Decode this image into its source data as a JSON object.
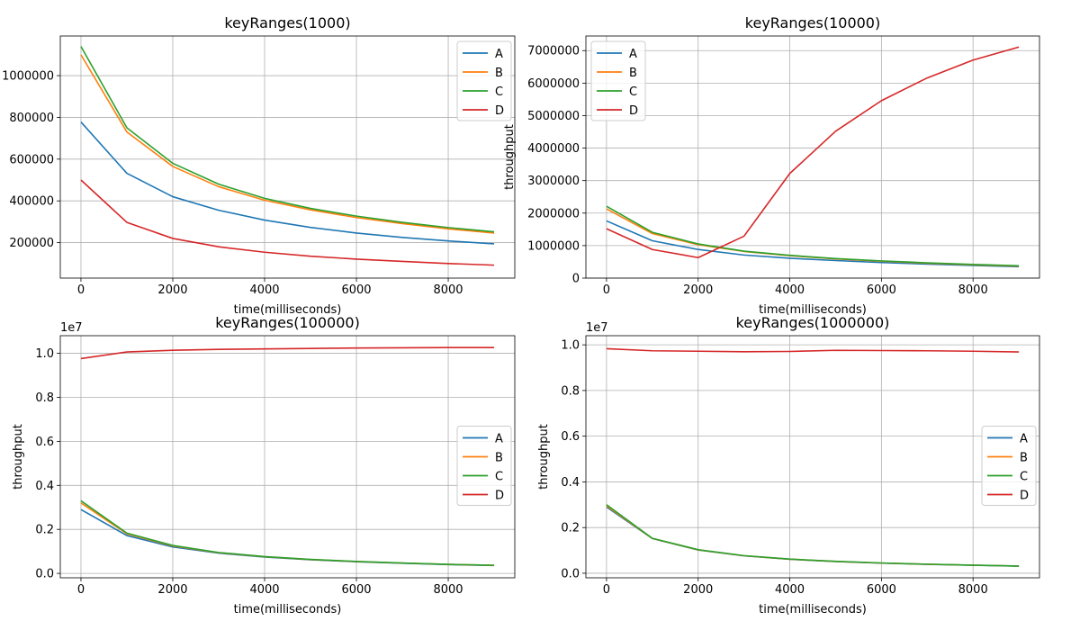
{
  "chart_data": [
    {
      "type": "line",
      "title": "keyRanges(1000)",
      "xlabel": "time(milliseconds)",
      "ylabel": "",
      "xlim": [
        -450,
        9450
      ],
      "ylim": [
        30000,
        1190000
      ],
      "xticks": [
        0,
        2000,
        4000,
        6000,
        8000
      ],
      "xtick_labels": [
        "0",
        "2000",
        "4000",
        "6000",
        "8000"
      ],
      "yticks": [
        200000,
        400000,
        600000,
        800000,
        1000000
      ],
      "ytick_labels": [
        "200000",
        "400000",
        "600000",
        "800000",
        "1000000"
      ],
      "offset_label": "",
      "grid": true,
      "legend": "upper-right",
      "x": [
        0,
        1000,
        2000,
        3000,
        4000,
        5000,
        6000,
        7000,
        8000,
        9000
      ],
      "series": [
        {
          "name": "A",
          "color": "#1f77b4",
          "values": [
            778000,
            532000,
            420000,
            355000,
            308000,
            273000,
            246000,
            225000,
            208000,
            194000
          ]
        },
        {
          "name": "B",
          "color": "#ff7f0e",
          "values": [
            1100000,
            730000,
            565000,
            468000,
            403000,
            357000,
            320000,
            291000,
            266000,
            246000
          ]
        },
        {
          "name": "C",
          "color": "#2ca02c",
          "values": [
            1140000,
            750000,
            580000,
            480000,
            412000,
            364000,
            327000,
            297000,
            272000,
            252000
          ]
        },
        {
          "name": "D",
          "color": "#d62728",
          "values": [
            500000,
            297000,
            220000,
            180000,
            154000,
            135000,
            121000,
            110000,
            100000,
            92000
          ]
        }
      ]
    },
    {
      "type": "line",
      "title": "keyRanges(10000)",
      "xlabel": "time(milliseconds)",
      "ylabel": "throughput",
      "xlim": [
        -450,
        9450
      ],
      "ylim": [
        0,
        7450000
      ],
      "xticks": [
        0,
        2000,
        4000,
        6000,
        8000
      ],
      "xtick_labels": [
        "0",
        "2000",
        "4000",
        "6000",
        "8000"
      ],
      "yticks": [
        0,
        1000000,
        2000000,
        3000000,
        4000000,
        5000000,
        6000000,
        7000000
      ],
      "ytick_labels": [
        "0",
        "1000000",
        "2000000",
        "3000000",
        "4000000",
        "5000000",
        "6000000",
        "7000000"
      ],
      "offset_label": "",
      "grid": true,
      "legend": "upper-left",
      "x": [
        0,
        1000,
        2000,
        3000,
        4000,
        5000,
        6000,
        7000,
        8000,
        9000
      ],
      "series": [
        {
          "name": "A",
          "color": "#1f77b4",
          "values": [
            1760000,
            1150000,
            880000,
            710000,
            610000,
            540000,
            480000,
            430000,
            390000,
            350000
          ]
        },
        {
          "name": "B",
          "color": "#ff7f0e",
          "values": [
            2130000,
            1370000,
            1030000,
            820000,
            690000,
            590000,
            520000,
            460000,
            410000,
            370000
          ]
        },
        {
          "name": "C",
          "color": "#2ca02c",
          "values": [
            2210000,
            1410000,
            1050000,
            830000,
            700000,
            600000,
            530000,
            470000,
            420000,
            380000
          ]
        },
        {
          "name": "D",
          "color": "#d62728",
          "values": [
            1520000,
            880000,
            630000,
            1290000,
            3220000,
            4520000,
            5460000,
            6160000,
            6710000,
            7110000
          ]
        }
      ]
    },
    {
      "type": "line",
      "title": "keyRanges(100000)",
      "xlabel": "time(milliseconds)",
      "ylabel": "throughput",
      "xlim": [
        -450,
        9450
      ],
      "ylim": [
        -200000,
        10800000
      ],
      "xticks": [
        0,
        2000,
        4000,
        6000,
        8000
      ],
      "xtick_labels": [
        "0",
        "2000",
        "4000",
        "6000",
        "8000"
      ],
      "yticks": [
        0,
        2000000,
        4000000,
        6000000,
        8000000,
        10000000
      ],
      "ytick_labels": [
        "0.0",
        "0.2",
        "0.4",
        "0.6",
        "0.8",
        "1.0"
      ],
      "offset_label": "1e7",
      "grid": true,
      "legend": "center-right",
      "x": [
        0,
        1000,
        2000,
        3000,
        4000,
        5000,
        6000,
        7000,
        8000,
        9000
      ],
      "series": [
        {
          "name": "A",
          "color": "#1f77b4",
          "values": [
            2900000,
            1720000,
            1200000,
            920000,
            740000,
            620000,
            530000,
            460000,
            400000,
            360000
          ]
        },
        {
          "name": "B",
          "color": "#ff7f0e",
          "values": [
            3200000,
            1800000,
            1250000,
            940000,
            760000,
            630000,
            540000,
            470000,
            410000,
            365000
          ]
        },
        {
          "name": "C",
          "color": "#2ca02c",
          "values": [
            3300000,
            1830000,
            1270000,
            950000,
            765000,
            635000,
            545000,
            472000,
            412000,
            368000
          ]
        },
        {
          "name": "D",
          "color": "#d62728",
          "values": [
            9760000,
            10060000,
            10140000,
            10180000,
            10200000,
            10220000,
            10240000,
            10250000,
            10260000,
            10260000
          ]
        }
      ]
    },
    {
      "type": "line",
      "title": "keyRanges(1000000)",
      "xlabel": "time(milliseconds)",
      "ylabel": "throughput",
      "xlim": [
        -450,
        9450
      ],
      "ylim": [
        -200000,
        10400000
      ],
      "xticks": [
        0,
        2000,
        4000,
        6000,
        8000
      ],
      "xtick_labels": [
        "0",
        "2000",
        "4000",
        "6000",
        "8000"
      ],
      "yticks": [
        0,
        2000000,
        4000000,
        6000000,
        8000000,
        10000000
      ],
      "ytick_labels": [
        "0.0",
        "0.2",
        "0.4",
        "0.6",
        "0.8",
        "1.0"
      ],
      "offset_label": "1e7",
      "grid": true,
      "legend": "center-right",
      "x": [
        0,
        1000,
        2000,
        3000,
        4000,
        5000,
        6000,
        7000,
        8000,
        9000
      ],
      "series": [
        {
          "name": "A",
          "color": "#1f77b4",
          "values": [
            2900000,
            1520000,
            1020000,
            760000,
            610000,
            510000,
            440000,
            390000,
            350000,
            310000
          ]
        },
        {
          "name": "B",
          "color": "#ff7f0e",
          "values": [
            2950000,
            1525000,
            1025000,
            765000,
            615000,
            515000,
            445000,
            393000,
            352000,
            312000
          ]
        },
        {
          "name": "C",
          "color": "#2ca02c",
          "values": [
            3000000,
            1530000,
            1030000,
            770000,
            620000,
            520000,
            450000,
            396000,
            355000,
            315000
          ]
        },
        {
          "name": "D",
          "color": "#d62728",
          "values": [
            9830000,
            9740000,
            9720000,
            9700000,
            9710000,
            9760000,
            9750000,
            9740000,
            9720000,
            9690000
          ]
        }
      ]
    }
  ]
}
